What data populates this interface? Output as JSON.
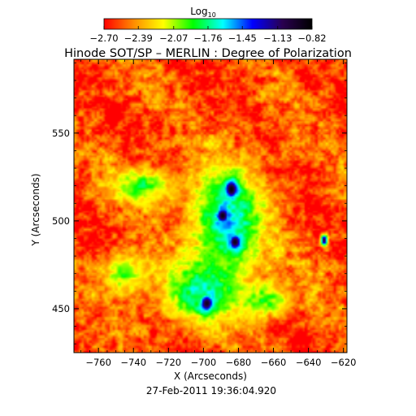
{
  "chart_data": {
    "type": "heatmap",
    "title": "Hinode SOT/SP – MERLIN : Degree of Polarization",
    "xlabel": "X (Arcseconds)",
    "ylabel": "Y (Arcseconds)",
    "xlim": [
      -774,
      -618
    ],
    "ylim": [
      425,
      592
    ],
    "x_ticks": [
      -760,
      -740,
      -720,
      -700,
      -680,
      -660,
      -640,
      -620
    ],
    "x_tick_labels": [
      "−760",
      "−740",
      "−720",
      "−700",
      "−680",
      "−660",
      "−640",
      "−620"
    ],
    "y_ticks": [
      450,
      500,
      550
    ],
    "y_tick_labels": [
      "450",
      "500",
      "550"
    ],
    "timestamp": "27-Feb-2011 19:36:04.920",
    "colorbar": {
      "label_main": "Log",
      "label_sub": "10",
      "range": [
        -2.7,
        -0.82
      ],
      "tick_values": [
        -2.7,
        -2.39,
        -2.07,
        -1.76,
        -1.45,
        -1.13,
        -0.82
      ],
      "tick_labels": [
        "−2.70",
        "−2.39",
        "−2.07",
        "−1.76",
        "−1.45",
        "−1.13",
        "−0.82"
      ],
      "colors": [
        "#ff0000",
        "#ff8c00",
        "#ffff00",
        "#00ff00",
        "#00ffff",
        "#0000ff",
        "#2a0050",
        "#000000"
      ]
    },
    "background_value": -2.55,
    "features": [
      {
        "kind": "spot",
        "x": -684,
        "y": 518,
        "rx": 5,
        "ry": 7,
        "value": -0.85
      },
      {
        "kind": "spot",
        "x": -689,
        "y": 503,
        "rx": 5,
        "ry": 6,
        "value": -0.88
      },
      {
        "kind": "spot",
        "x": -682,
        "y": 488,
        "rx": 5,
        "ry": 6,
        "value": -0.9
      },
      {
        "kind": "spot",
        "x": -698,
        "y": 453,
        "rx": 5,
        "ry": 6,
        "value": -0.92
      },
      {
        "kind": "spot",
        "x": -631,
        "y": 489,
        "rx": 2.5,
        "ry": 4,
        "value": -1.0
      },
      {
        "kind": "plage",
        "x": -686,
        "y": 500,
        "rx": 20,
        "ry": 30,
        "value": -1.6
      },
      {
        "kind": "plage",
        "x": -700,
        "y": 460,
        "rx": 22,
        "ry": 18,
        "value": -1.7
      },
      {
        "kind": "plage",
        "x": -735,
        "y": 520,
        "rx": 18,
        "ry": 10,
        "value": -1.9
      },
      {
        "kind": "plage",
        "x": -745,
        "y": 470,
        "rx": 14,
        "ry": 12,
        "value": -2.0
      },
      {
        "kind": "plage",
        "x": -665,
        "y": 455,
        "rx": 16,
        "ry": 10,
        "value": -1.95
      }
    ]
  }
}
